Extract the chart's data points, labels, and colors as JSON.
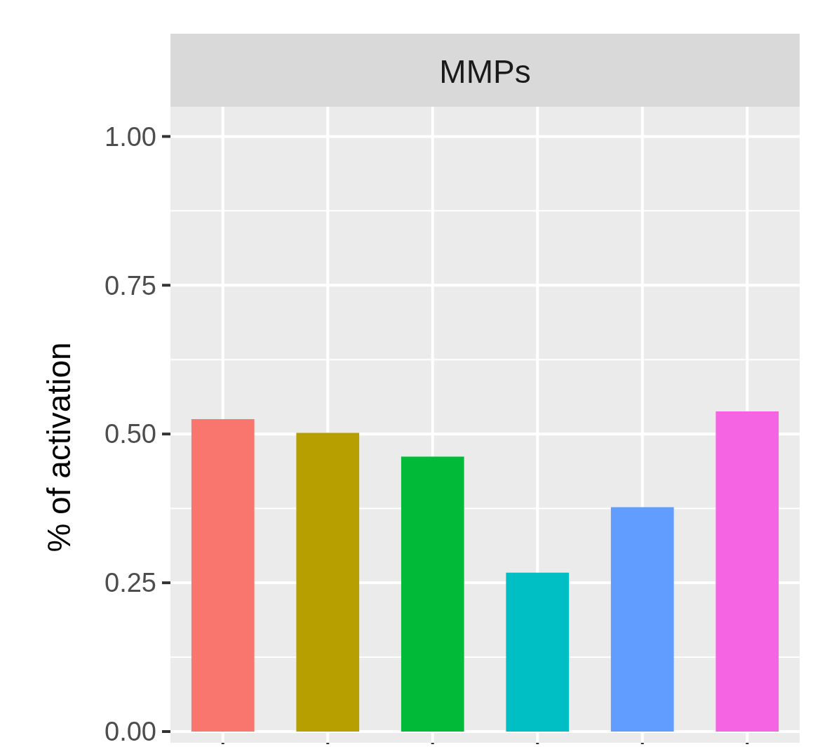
{
  "chart_data": {
    "type": "bar",
    "title": "MMPs",
    "ylabel": "% of activation",
    "categories": [
      null,
      null,
      null,
      null,
      null,
      null
    ],
    "values": [
      0.525,
      0.502,
      0.462,
      0.267,
      0.377,
      0.538
    ],
    "colors": [
      "#f8766d",
      "#b79f00",
      "#00ba38",
      "#00bfc4",
      "#619cff",
      "#f564e3"
    ],
    "ylim": [
      0,
      1.05
    ],
    "yticks": [
      {
        "value": 0,
        "label": "0.00"
      },
      {
        "value": 0.25,
        "label": "0.25"
      },
      {
        "value": 0.5,
        "label": "0.50"
      },
      {
        "value": 0.75,
        "label": "0.75"
      },
      {
        "value": 1,
        "label": "1.00"
      }
    ],
    "grid": true
  }
}
